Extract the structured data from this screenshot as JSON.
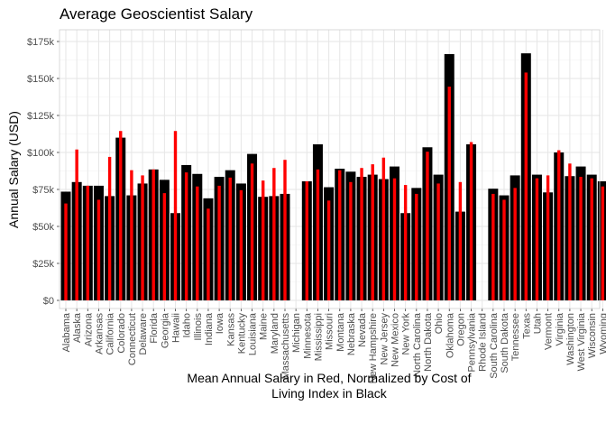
{
  "chart_data": {
    "type": "bar",
    "title": "Average Geoscientist Salary",
    "ylabel": "Annual Salary (USD)",
    "xlabel_lines": [
      "Mean Annual Salary in Red, Normalized by Cost of",
      "Living Index in Black"
    ],
    "ylim": [
      0,
      180000
    ],
    "y_ticks": [
      0,
      25000,
      50000,
      75000,
      100000,
      125000,
      150000,
      175000
    ],
    "y_tick_labels": [
      "$0",
      "$25k",
      "$50k",
      "$75k",
      "$100k",
      "$125k",
      "$150k",
      "$175k"
    ],
    "grid": true,
    "categories": [
      "Alabama",
      "Alaska",
      "Arizona",
      "Arkansas",
      "California",
      "Colorado",
      "Connecticut",
      "Delaware",
      "Florida",
      "Georgia",
      "Hawaii",
      "Idaho",
      "Illinois",
      "Indiana",
      "Iowa",
      "Kansas",
      "Kentucky",
      "Louisiana",
      "Maine",
      "Maryland",
      "Massachusetts",
      "Michigan",
      "Minnesota",
      "Mississippi",
      "Missouri",
      "Montana",
      "Nebraska",
      "Nevada",
      "New Hampshire",
      "New Jersey",
      "New Mexico",
      "New York",
      "North Carolina",
      "North Dakota",
      "Ohio",
      "Oklahoma",
      "Oregon",
      "Pennsylvania",
      "Rhode Island",
      "South Carolina",
      "South Dakota",
      "Tennessee",
      "Texas",
      "Utah",
      "Vermont",
      "Virginia",
      "Washington",
      "West Virginia",
      "Wisconsin",
      "Wyoming"
    ],
    "series": [
      {
        "color": "#000000",
        "values": [
          73500,
          80000,
          77500,
          77500,
          70500,
          110000,
          71000,
          79000,
          88500,
          81500,
          59000,
          91500,
          85500,
          69000,
          83500,
          88000,
          79000,
          99000,
          70000,
          70500,
          72000,
          null,
          80500,
          105500,
          76500,
          89000,
          87000,
          83500,
          85000,
          82000,
          90500,
          59000,
          76000,
          103500,
          85000,
          166500,
          60000,
          105500,
          null,
          75500,
          71000,
          84500,
          167000,
          85000,
          73000,
          100000,
          84000,
          90500,
          85000,
          80500
        ]
      },
      {
        "color": "#ff0000",
        "values": [
          65500,
          102000,
          77500,
          68000,
          97000,
          114500,
          88000,
          84500,
          88500,
          72500,
          114500,
          86500,
          77000,
          62000,
          77500,
          83000,
          74500,
          92500,
          81000,
          89500,
          95000,
          null,
          80500,
          88500,
          67500,
          88000,
          80000,
          89500,
          92000,
          96500,
          82500,
          78000,
          72000,
          100500,
          79000,
          144500,
          80000,
          107000,
          null,
          72000,
          68000,
          76000,
          154000,
          82500,
          84500,
          101500,
          92500,
          83500,
          82500,
          77000
        ]
      }
    ]
  }
}
